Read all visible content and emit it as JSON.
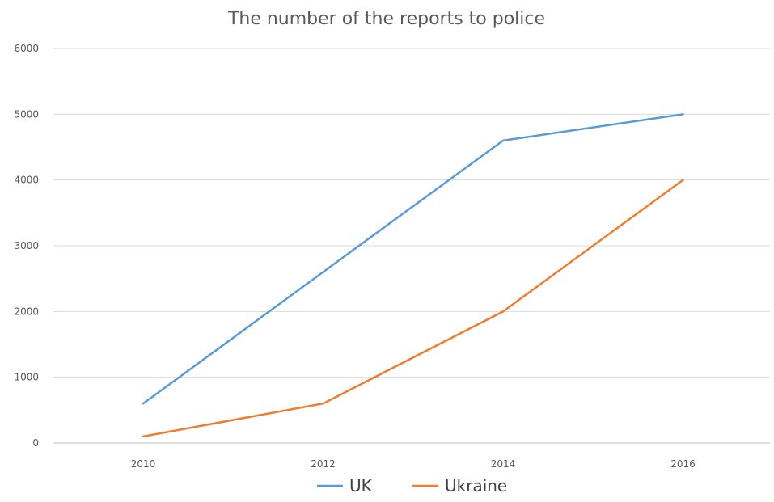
{
  "chart_data": {
    "type": "line",
    "title": "The number of the reports to police",
    "x": [
      "2010",
      "2012",
      "2014",
      "2016"
    ],
    "ylim": [
      0,
      6000
    ],
    "yticks": [
      "0",
      "1000",
      "2000",
      "3000",
      "4000",
      "5000",
      "6000"
    ],
    "grid": true,
    "legend_position": "bottom",
    "series": [
      {
        "name": "UK",
        "color": "#5b9bd5",
        "values": [
          600,
          2600,
          4600,
          5000
        ]
      },
      {
        "name": "Ukraine",
        "color": "#ed7d31",
        "values": [
          100,
          600,
          2000,
          4000
        ]
      }
    ]
  }
}
